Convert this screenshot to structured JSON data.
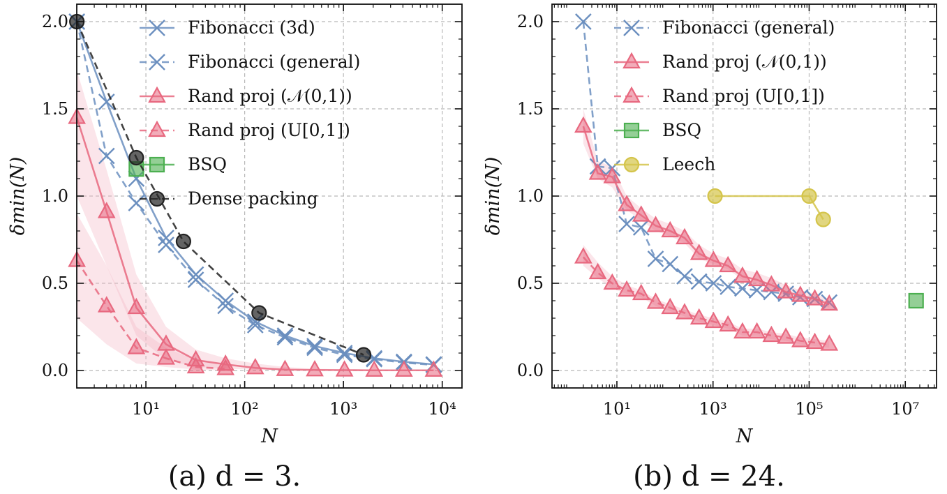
{
  "colors": {
    "blue": "#6b8fbf",
    "red": "#e8687f",
    "red_fill": "#f4b4c2",
    "green": "#4caf50",
    "yellow": "#d4c44a",
    "black": "#222222",
    "grid": "#b8b8b8"
  },
  "chart_data": [
    {
      "type": "line",
      "caption": "(a) d = 3.",
      "xlabel": "N",
      "ylabel": "δmin(N)",
      "xscale": "log",
      "xlim_log10": [
        0.3,
        4.2
      ],
      "ylim": [
        -0.1,
        2.1
      ],
      "xticks": [
        {
          "value": 1,
          "label": "10¹"
        },
        {
          "value": 2,
          "label": "10²"
        },
        {
          "value": 3,
          "label": "10³"
        },
        {
          "value": 4,
          "label": "10⁴"
        }
      ],
      "yticks": [
        "0.0",
        "0.5",
        "1.0",
        "1.5",
        "2.0"
      ],
      "legend_position": "top-right",
      "series": [
        {
          "name": "Fibonacci (3d)",
          "color": "blue",
          "dash": false,
          "marker": "x",
          "x": [
            2,
            4,
            8,
            16,
            32,
            64,
            128,
            256,
            512,
            1024,
            2048,
            4096,
            8192
          ],
          "y": [
            2.0,
            1.54,
            1.1,
            0.76,
            0.55,
            0.4,
            0.28,
            0.2,
            0.14,
            0.1,
            0.07,
            0.05,
            0.035
          ]
        },
        {
          "name": "Fibonacci (general)",
          "color": "blue",
          "dash": true,
          "marker": "x",
          "x": [
            2,
            4,
            8,
            16,
            32,
            64,
            128,
            256,
            512,
            1024,
            2048,
            4096,
            8192
          ],
          "y": [
            2.0,
            1.23,
            0.96,
            0.72,
            0.52,
            0.37,
            0.26,
            0.19,
            0.13,
            0.09,
            0.065,
            0.045,
            0.032
          ]
        },
        {
          "name": "Rand proj (𝒩(0,1))",
          "color": "red",
          "dash": false,
          "marker": "triangle",
          "x": [
            2,
            4,
            8,
            16,
            32,
            64,
            128,
            256,
            512,
            1024,
            2048,
            4096,
            8192
          ],
          "y": [
            1.45,
            0.91,
            0.36,
            0.15,
            0.06,
            0.035,
            0.015,
            0.005,
            0.003,
            0.002,
            0.001,
            0.001,
            0.001
          ],
          "band_lo": [
            1.0,
            0.6,
            0.2,
            0.06,
            0.02,
            0.01,
            0.005,
            0.002,
            0.001,
            0.0,
            0.0,
            0.0,
            0.0
          ],
          "band_hi": [
            1.72,
            1.15,
            0.55,
            0.25,
            0.12,
            0.07,
            0.04,
            0.02,
            0.01,
            0.006,
            0.004,
            0.003,
            0.002
          ]
        },
        {
          "name": "Rand proj (U[0,1])",
          "color": "red",
          "dash": true,
          "marker": "triangle",
          "x": [
            2,
            4,
            8,
            16,
            32,
            64
          ],
          "y": [
            0.63,
            0.37,
            0.13,
            0.07,
            0.02,
            0.01
          ],
          "band_lo": [
            0.3,
            0.15,
            0.04,
            0.02,
            0.005,
            0.0
          ],
          "band_hi": [
            0.9,
            0.6,
            0.25,
            0.13,
            0.06,
            0.03
          ]
        },
        {
          "name": "BSQ",
          "color": "green",
          "dash": false,
          "marker": "square",
          "x": [
            8
          ],
          "y": [
            1.155
          ]
        },
        {
          "name": "Dense packing",
          "color": "black",
          "dash": true,
          "marker": "circle",
          "x": [
            2,
            8,
            24,
            140,
            1600
          ],
          "y": [
            2.0,
            1.22,
            0.74,
            0.33,
            0.09
          ]
        }
      ]
    },
    {
      "type": "line",
      "caption": "(b) d = 24.",
      "xlabel": "N",
      "ylabel": "δmin(N)",
      "xscale": "log",
      "xlim_log10": [
        -0.35,
        7.65
      ],
      "ylim": [
        -0.1,
        2.1
      ],
      "xticks": [
        {
          "value": 1,
          "label": "10¹"
        },
        {
          "value": 3,
          "label": "10³"
        },
        {
          "value": 5,
          "label": "10⁵"
        },
        {
          "value": 7,
          "label": "10⁷"
        }
      ],
      "yticks": [
        "0.0",
        "0.5",
        "1.0",
        "1.5",
        "2.0"
      ],
      "legend_position": "top-right",
      "series": [
        {
          "name": "Fibonacci (general)",
          "color": "blue",
          "dash": true,
          "marker": "x",
          "x": [
            2,
            4,
            8,
            16,
            32,
            64,
            128,
            256,
            512,
            1024,
            2048,
            4096,
            8192,
            16384,
            32768,
            65536,
            131072,
            262144
          ],
          "y": [
            2.0,
            1.17,
            1.16,
            0.84,
            0.82,
            0.64,
            0.61,
            0.54,
            0.51,
            0.5,
            0.48,
            0.47,
            0.46,
            0.45,
            0.44,
            0.42,
            0.41,
            0.39
          ]
        },
        {
          "name": "Rand proj (𝒩(0,1))",
          "color": "red",
          "dash": false,
          "marker": "triangle",
          "x": [
            2,
            4,
            8,
            16,
            32,
            64,
            128,
            256,
            512,
            1024,
            2048,
            4096,
            8192,
            16384,
            32768,
            65536,
            131072,
            262144
          ],
          "y": [
            1.4,
            1.13,
            1.11,
            0.95,
            0.89,
            0.83,
            0.8,
            0.76,
            0.67,
            0.63,
            0.6,
            0.54,
            0.52,
            0.49,
            0.45,
            0.43,
            0.41,
            0.38
          ],
          "band_lo": [
            1.3,
            1.1,
            1.05,
            0.92,
            0.86,
            0.8,
            0.77,
            0.73,
            0.64,
            0.61,
            0.58,
            0.52,
            0.5,
            0.47,
            0.43,
            0.41,
            0.39,
            0.36
          ],
          "band_hi": [
            1.5,
            1.2,
            1.17,
            1.0,
            0.93,
            0.87,
            0.84,
            0.8,
            0.72,
            0.67,
            0.64,
            0.58,
            0.56,
            0.53,
            0.49,
            0.46,
            0.44,
            0.41
          ]
        },
        {
          "name": "Rand proj (U[0,1])",
          "color": "red",
          "dash": true,
          "marker": "triangle",
          "x": [
            2,
            4,
            8,
            16,
            32,
            64,
            128,
            256,
            512,
            1024,
            2048,
            4096,
            8192,
            16384,
            32768,
            65536,
            131072,
            262144
          ],
          "y": [
            0.65,
            0.56,
            0.5,
            0.46,
            0.44,
            0.39,
            0.36,
            0.33,
            0.3,
            0.28,
            0.26,
            0.22,
            0.22,
            0.2,
            0.19,
            0.17,
            0.16,
            0.15
          ],
          "band_lo": [
            0.6,
            0.53,
            0.47,
            0.44,
            0.42,
            0.37,
            0.34,
            0.31,
            0.28,
            0.26,
            0.24,
            0.2,
            0.2,
            0.18,
            0.17,
            0.15,
            0.14,
            0.13
          ],
          "band_hi": [
            0.72,
            0.62,
            0.54,
            0.49,
            0.46,
            0.41,
            0.38,
            0.35,
            0.32,
            0.3,
            0.28,
            0.24,
            0.24,
            0.22,
            0.21,
            0.19,
            0.18,
            0.17
          ]
        },
        {
          "name": "BSQ",
          "color": "green",
          "dash": false,
          "marker": "square",
          "x": [
            16777216
          ],
          "y": [
            0.4
          ]
        },
        {
          "name": "Leech",
          "color": "yellow",
          "dash": false,
          "marker": "circle",
          "x": [
            1100,
            100000,
            196560
          ],
          "y": [
            1.0,
            1.0,
            0.866
          ]
        }
      ]
    }
  ]
}
